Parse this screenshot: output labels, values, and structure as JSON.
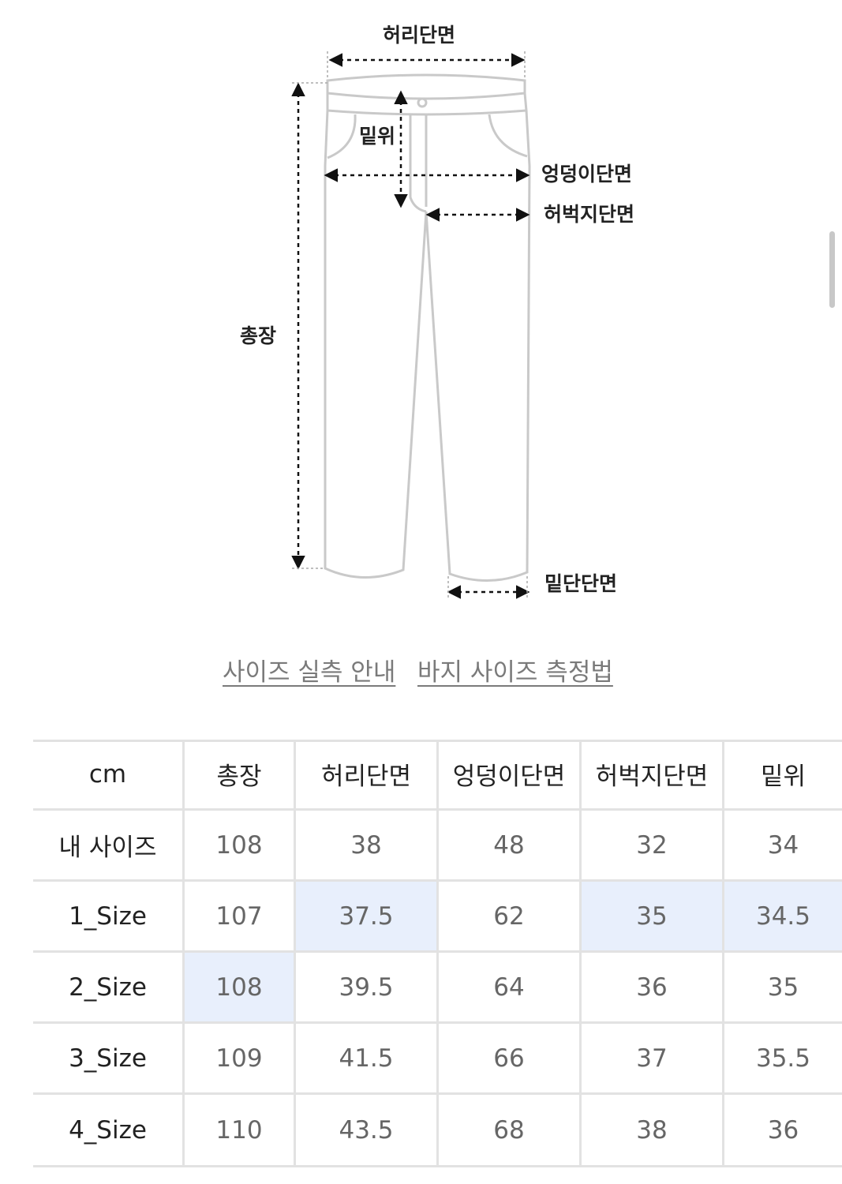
{
  "diagram": {
    "labels": {
      "waist": "허리단면",
      "rise": "밑위",
      "hip": "엉덩이단면",
      "thigh": "허벅지단면",
      "length": "총장",
      "hem": "밑단단면"
    }
  },
  "links": [
    "사이즈 실측 안내",
    "바지 사이즈 측정법"
  ],
  "table": {
    "header": [
      "cm",
      "총장",
      "허리단면",
      "엉덩이단면",
      "허벅지단면",
      "밑위"
    ],
    "rows": [
      [
        "내 사이즈",
        "108",
        "38",
        "48",
        "32",
        "34"
      ],
      [
        "1_Size",
        "107",
        "37.5",
        "62",
        "35",
        "34.5"
      ],
      [
        "2_Size",
        "108",
        "39.5",
        "64",
        "36",
        "35"
      ],
      [
        "3_Size",
        "109",
        "41.5",
        "66",
        "37",
        "35.5"
      ],
      [
        "4_Size",
        "110",
        "43.5",
        "68",
        "38",
        "36"
      ]
    ]
  }
}
